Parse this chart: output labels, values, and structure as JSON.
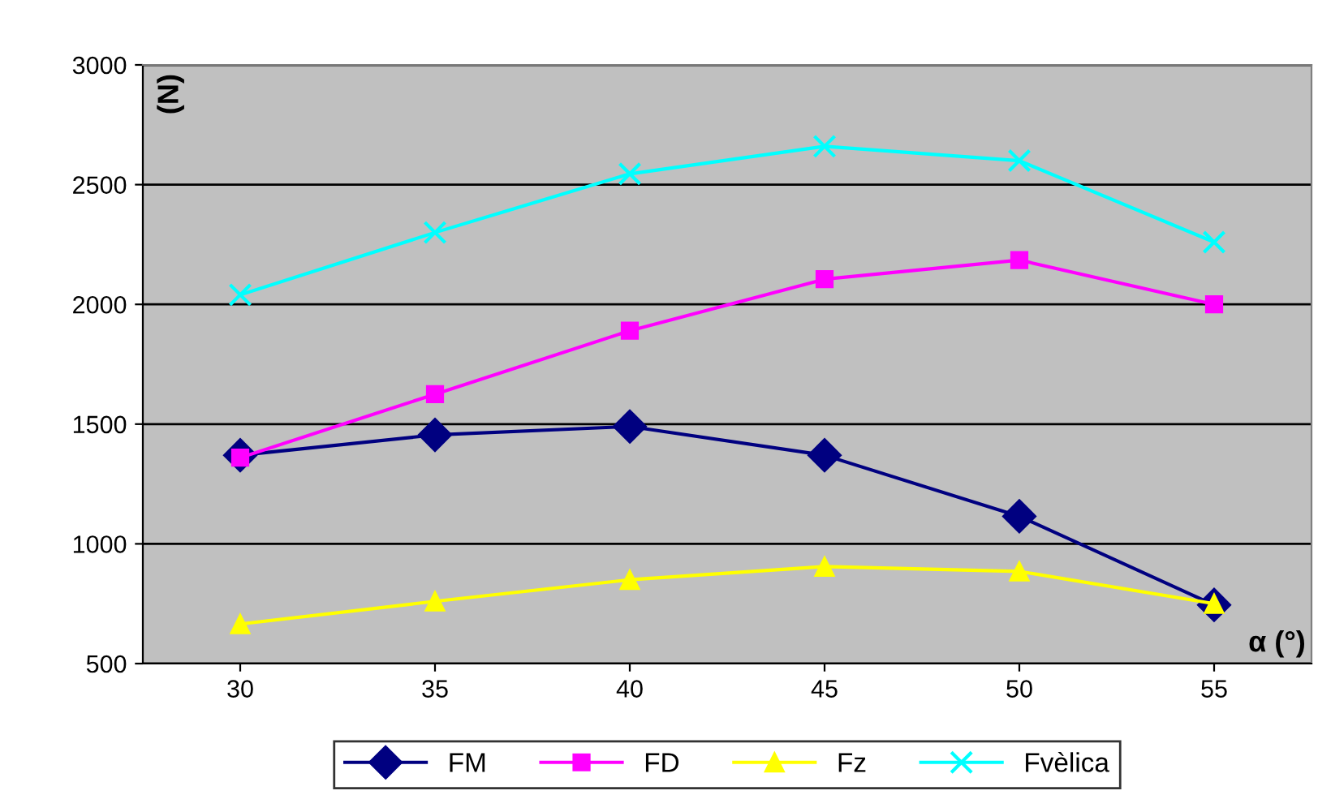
{
  "chart_data": {
    "type": "line",
    "xlabel": "α (°)",
    "ylabel": "(N)",
    "categories": [
      "30",
      "35",
      "40",
      "45",
      "50",
      "55"
    ],
    "series": [
      {
        "name": "FM",
        "color": "#000080",
        "marker": "diamond",
        "values": [
          1370,
          1455,
          1490,
          1370,
          1115,
          745
        ]
      },
      {
        "name": "FD",
        "color": "#ff00ff",
        "marker": "square",
        "values": [
          1360,
          1625,
          1890,
          2105,
          2185,
          2000
        ]
      },
      {
        "name": "Fz",
        "color": "#ffff00",
        "marker": "triangle",
        "values": [
          665,
          760,
          850,
          905,
          885,
          750
        ]
      },
      {
        "name": "Fvèlica",
        "color": "#00ffff",
        "marker": "cross",
        "values": [
          2040,
          2300,
          2545,
          2660,
          2600,
          2260
        ]
      }
    ],
    "ylim": [
      500,
      3000
    ],
    "yticks": [
      500,
      1000,
      1500,
      2000,
      2500,
      3000
    ],
    "grid": "y",
    "legend": "bottom"
  }
}
